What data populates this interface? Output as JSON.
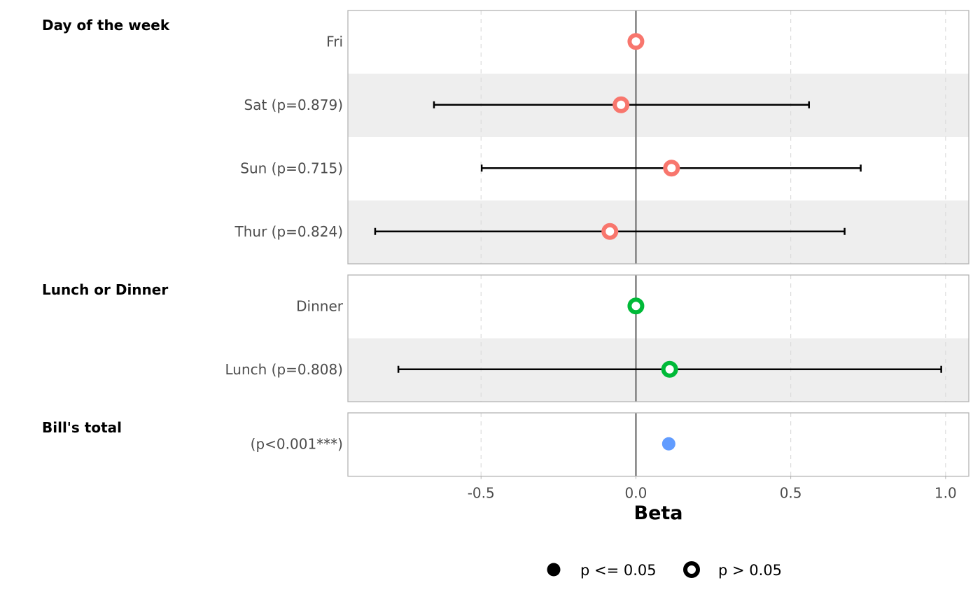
{
  "chart_data": {
    "type": "forest",
    "xlabel": "Beta",
    "xlim": [
      -0.93,
      1.075
    ],
    "xticks": [
      -0.5,
      0.0,
      0.5,
      1.0
    ],
    "xtick_labels": [
      "-0.5",
      "0.0",
      "0.5",
      "1.0"
    ],
    "grid": "vertical dashed",
    "reference_line": 0,
    "groups": [
      {
        "label": "Day of the week",
        "color": "#F8766D",
        "rows": [
          {
            "label": "Fri",
            "beta": 0,
            "lower": null,
            "upper": null,
            "significant": false
          },
          {
            "label": "Sat (p=0.879)",
            "beta": -0.048,
            "lower": -0.652,
            "upper": 0.559,
            "significant": false
          },
          {
            "label": "Sun (p=0.715)",
            "beta": 0.115,
            "lower": -0.498,
            "upper": 0.726,
            "significant": false
          },
          {
            "label": "Thur (p=0.824)",
            "beta": -0.084,
            "lower": -0.842,
            "upper": 0.674,
            "significant": false
          }
        ]
      },
      {
        "label": "Lunch or Dinner",
        "color": "#00BA38",
        "rows": [
          {
            "label": "Dinner",
            "beta": 0,
            "lower": null,
            "upper": null,
            "significant": false
          },
          {
            "label": "Lunch (p=0.808)",
            "beta": 0.109,
            "lower": -0.767,
            "upper": 0.986,
            "significant": false
          }
        ]
      },
      {
        "label": "Bill's total",
        "color": "#619CFF",
        "rows": [
          {
            "label": "(p<0.001***)",
            "beta": 0.106,
            "lower": 0.09,
            "upper": 0.12,
            "significant": true
          }
        ]
      }
    ],
    "legend": {
      "position": "bottom",
      "items": [
        {
          "label": "p <= 0.05",
          "shape": "filled"
        },
        {
          "label": "p > 0.05",
          "shape": "hollow"
        }
      ]
    }
  }
}
